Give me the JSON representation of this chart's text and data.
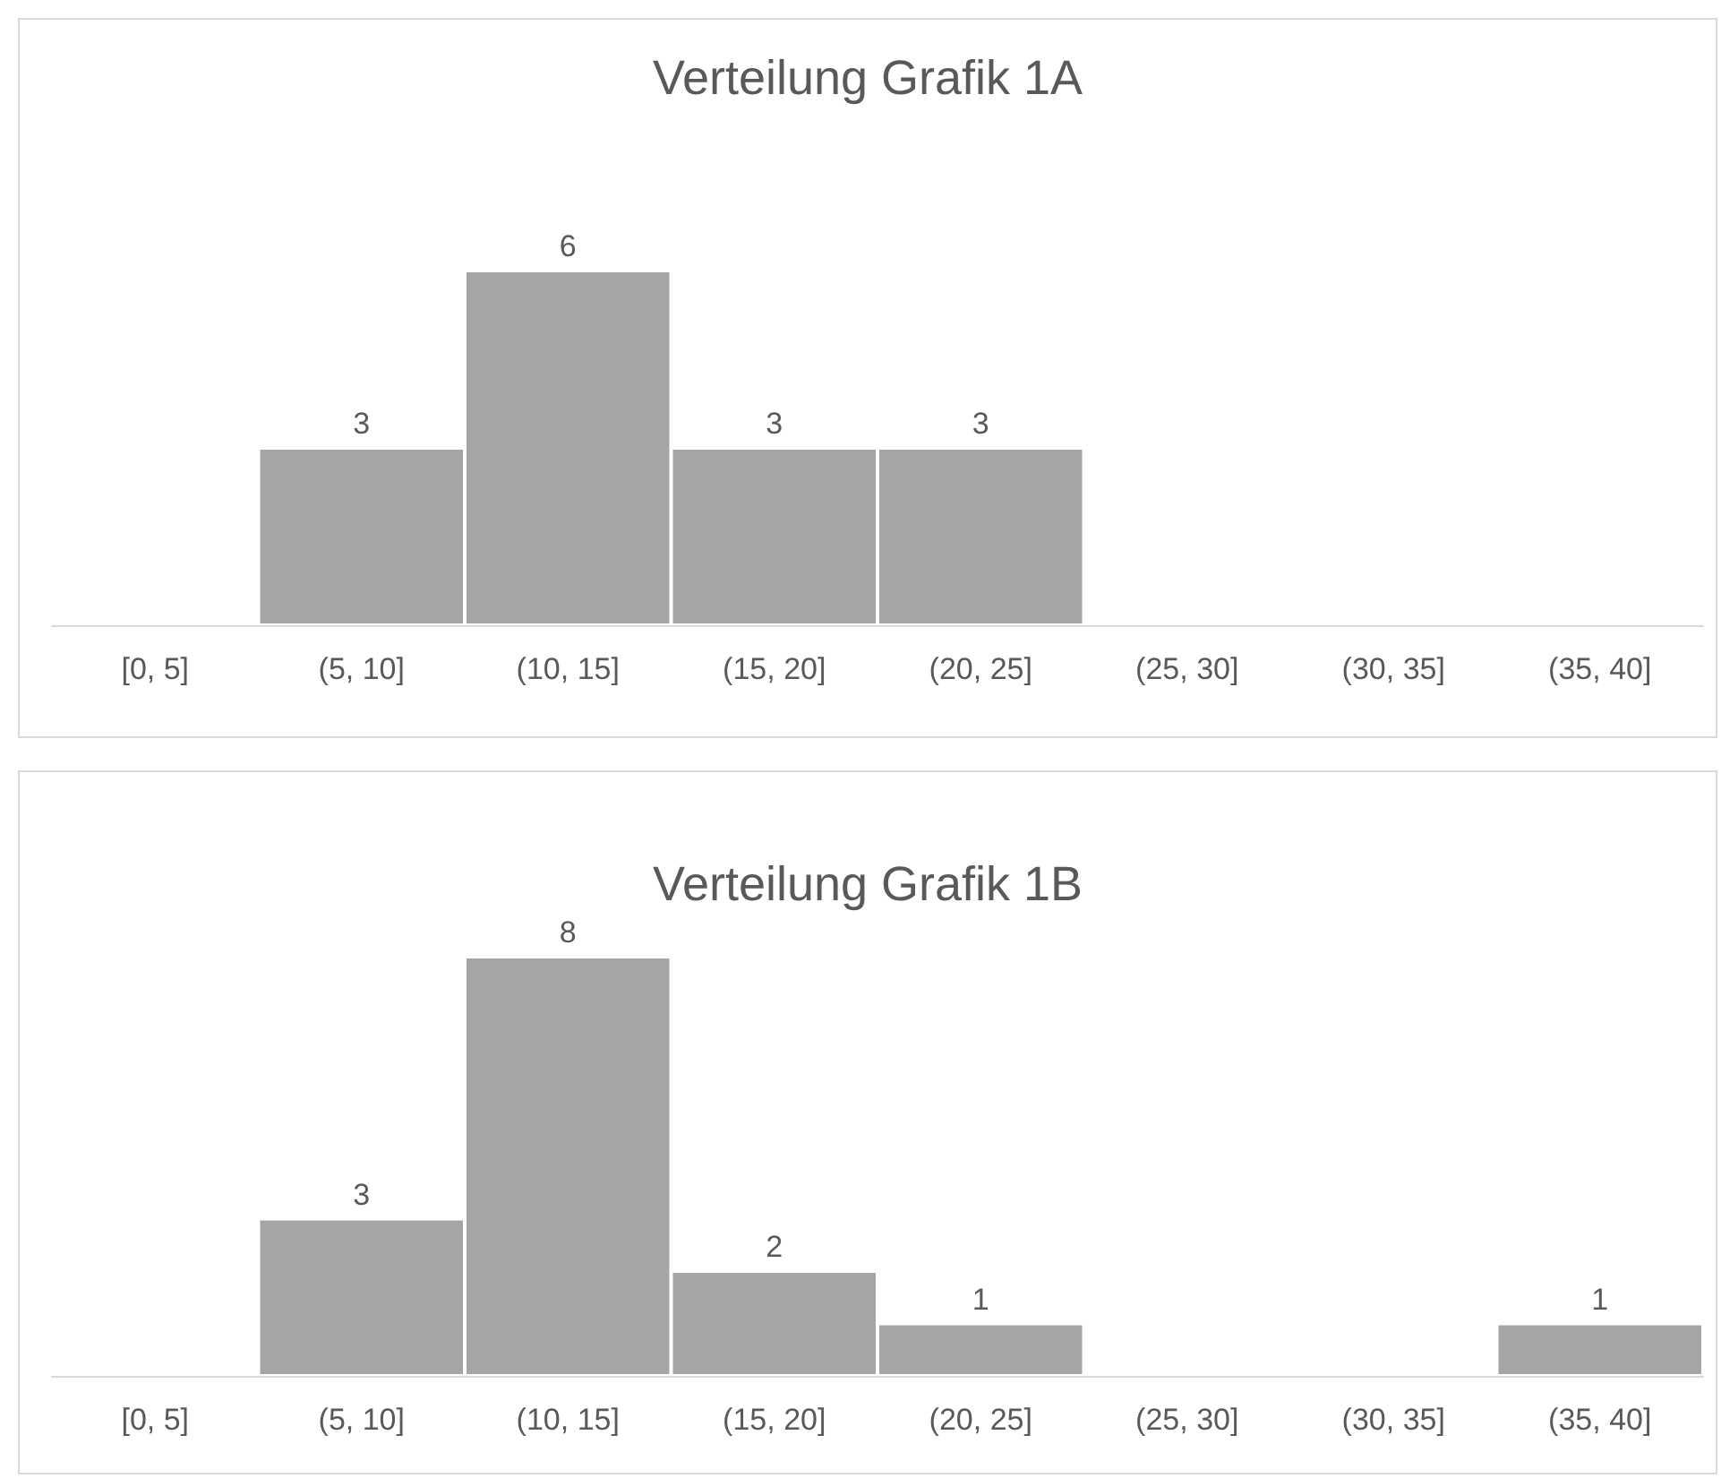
{
  "chart_data": [
    {
      "type": "bar",
      "title": "Verteilung Grafik 1A",
      "categories": [
        "[0, 5]",
        "(5, 10]",
        "(10, 15]",
        "(15, 20]",
        "(20, 25]",
        "(25, 30]",
        "(30, 35]",
        "(35, 40]"
      ],
      "values": [
        0,
        3,
        6,
        3,
        3,
        0,
        0,
        0
      ],
      "value_labels": [
        null,
        "3",
        "6",
        "3",
        "3",
        null,
        null,
        null
      ],
      "color": "#a5a5a5"
    },
    {
      "type": "bar",
      "title": "Verteilung Grafik 1B",
      "categories": [
        "[0, 5]",
        "(5, 10]",
        "(10, 15]",
        "(15, 20]",
        "(20, 25]",
        "(25, 30]",
        "(30, 35]",
        "(35, 40]"
      ],
      "values": [
        0,
        3,
        8,
        2,
        1,
        0,
        0,
        1
      ],
      "value_labels": [
        null,
        "3",
        "8",
        "2",
        "1",
        null,
        null,
        "1"
      ],
      "color": "#a5a5a5"
    }
  ]
}
